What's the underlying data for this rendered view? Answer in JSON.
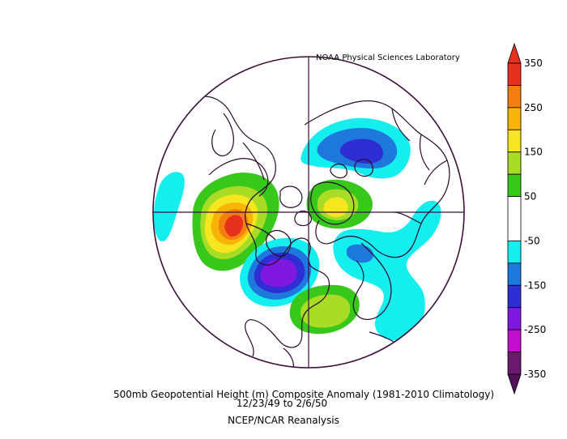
{
  "credit": "NOAA Physical Sciences Laboratory",
  "title_line1": "500mb Geopotential Height (m) Composite Anomaly (1981-2010 Climatology)",
  "title_line2": "12/23/49  to 2/6/50",
  "source": "NCEP/NCAR Reanalysis",
  "projection": "north polar stereographic",
  "colorbar": {
    "tick_labels": [
      "350",
      "250",
      "150",
      "50",
      "-50",
      "-150",
      "-250",
      "-350"
    ],
    "bins": [
      {
        "min": 300,
        "max": 350,
        "color": "#e8301e"
      },
      {
        "min": 250,
        "max": 300,
        "color": "#f27f10"
      },
      {
        "min": 200,
        "max": 250,
        "color": "#f9b40a"
      },
      {
        "min": 150,
        "max": 200,
        "color": "#f5e61f"
      },
      {
        "min": 100,
        "max": 150,
        "color": "#a8dc26"
      },
      {
        "min": 50,
        "max": 100,
        "color": "#38c81c"
      },
      {
        "min": -50,
        "max": 50,
        "color": "#ffffff"
      },
      {
        "min": -100,
        "max": -50,
        "color": "#14eeee"
      },
      {
        "min": -150,
        "max": -100,
        "color": "#1f78dc"
      },
      {
        "min": -200,
        "max": -150,
        "color": "#2d2ed4"
      },
      {
        "min": -250,
        "max": -200,
        "color": "#7f18e0"
      },
      {
        "min": -300,
        "max": -250,
        "color": "#c00fcc"
      },
      {
        "min": -350,
        "max": -300,
        "color": "#6a1a6e"
      }
    ],
    "extends_above": "#e8301e",
    "extends_below": "#52105a"
  },
  "colors": {
    "outline": "#3d0f3d",
    "map_lines": "#2a0a2a"
  }
}
